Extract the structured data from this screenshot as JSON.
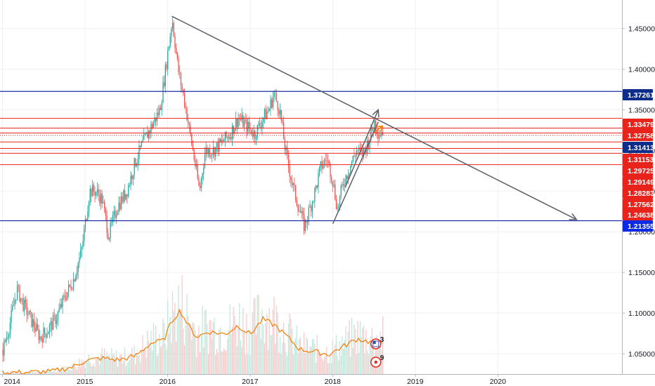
{
  "chart_data": {
    "type": "candlestick",
    "grid": true,
    "x_axis": {
      "ticks": [
        {
          "label": "2014",
          "x": 2014.0
        },
        {
          "label": "2015",
          "x": 2015.0
        },
        {
          "label": "2016",
          "x": 2016.0
        },
        {
          "label": "2017",
          "x": 2017.0
        },
        {
          "label": "2018",
          "x": 2018.0
        },
        {
          "label": "2019",
          "x": 2019.0
        },
        {
          "label": "2020",
          "x": 2020.0
        }
      ],
      "range": [
        2013.97,
        2021.5
      ]
    },
    "y_axis": {
      "ticks": [
        "1.05000",
        "1.10000",
        "1.15000",
        "1.20000",
        "1.25000",
        "1.30000",
        "1.35000",
        "1.40000",
        "1.45000"
      ],
      "range": [
        1.025,
        1.485
      ]
    },
    "price_path": [
      [
        2014.0,
        1.055
      ],
      [
        2014.08,
        1.085
      ],
      [
        2014.17,
        1.13
      ],
      [
        2014.25,
        1.11
      ],
      [
        2014.35,
        1.09
      ],
      [
        2014.45,
        1.07
      ],
      [
        2014.55,
        1.08
      ],
      [
        2014.65,
        1.095
      ],
      [
        2014.75,
        1.12
      ],
      [
        2014.85,
        1.14
      ],
      [
        2014.95,
        1.175
      ],
      [
        2015.05,
        1.25
      ],
      [
        2015.12,
        1.25
      ],
      [
        2015.2,
        1.24
      ],
      [
        2015.28,
        1.195
      ],
      [
        2015.38,
        1.23
      ],
      [
        2015.5,
        1.25
      ],
      [
        2015.6,
        1.285
      ],
      [
        2015.7,
        1.31
      ],
      [
        2015.8,
        1.33
      ],
      [
        2015.9,
        1.35
      ],
      [
        2015.97,
        1.4
      ],
      [
        2016.05,
        1.462
      ],
      [
        2016.12,
        1.4
      ],
      [
        2016.2,
        1.36
      ],
      [
        2016.3,
        1.3
      ],
      [
        2016.38,
        1.25
      ],
      [
        2016.45,
        1.3
      ],
      [
        2016.55,
        1.3
      ],
      [
        2016.65,
        1.31
      ],
      [
        2016.75,
        1.32
      ],
      [
        2016.85,
        1.34
      ],
      [
        2016.95,
        1.33
      ],
      [
        2017.05,
        1.32
      ],
      [
        2017.15,
        1.34
      ],
      [
        2017.22,
        1.35
      ],
      [
        2017.28,
        1.37
      ],
      [
        2017.35,
        1.35
      ],
      [
        2017.42,
        1.3
      ],
      [
        2017.5,
        1.26
      ],
      [
        2017.58,
        1.23
      ],
      [
        2017.65,
        1.206
      ],
      [
        2017.72,
        1.23
      ],
      [
        2017.78,
        1.25
      ],
      [
        2017.85,
        1.28
      ],
      [
        2017.92,
        1.29
      ],
      [
        2017.98,
        1.27
      ],
      [
        2018.05,
        1.228
      ],
      [
        2018.12,
        1.26
      ],
      [
        2018.2,
        1.28
      ],
      [
        2018.28,
        1.3
      ],
      [
        2018.35,
        1.295
      ],
      [
        2018.42,
        1.31
      ],
      [
        2018.5,
        1.335
      ],
      [
        2018.55,
        1.32
      ],
      [
        2018.6,
        1.325
      ]
    ],
    "volume_ma": [
      [
        2014.0,
        0.02
      ],
      [
        2014.3,
        0.02
      ],
      [
        2014.6,
        0.03
      ],
      [
        2014.85,
        0.08
      ],
      [
        2015.0,
        0.15
      ],
      [
        2015.2,
        0.18
      ],
      [
        2015.4,
        0.16
      ],
      [
        2015.6,
        0.2
      ],
      [
        2015.8,
        0.35
      ],
      [
        2015.95,
        0.38
      ],
      [
        2016.05,
        0.6
      ],
      [
        2016.15,
        0.72
      ],
      [
        2016.25,
        0.55
      ],
      [
        2016.35,
        0.42
      ],
      [
        2016.5,
        0.48
      ],
      [
        2016.7,
        0.45
      ],
      [
        2016.85,
        0.55
      ],
      [
        2017.0,
        0.45
      ],
      [
        2017.15,
        0.62
      ],
      [
        2017.3,
        0.55
      ],
      [
        2017.45,
        0.42
      ],
      [
        2017.6,
        0.28
      ],
      [
        2017.8,
        0.25
      ],
      [
        2017.95,
        0.22
      ],
      [
        2018.1,
        0.3
      ],
      [
        2018.3,
        0.4
      ],
      [
        2018.5,
        0.35
      ],
      [
        2018.62,
        0.38
      ]
    ],
    "levels": [
      {
        "label": "1.37261",
        "y": 1.37261,
        "color": "#0d2d8a"
      },
      {
        "label": "1.33479",
        "y": 1.33479,
        "color": "#e8231b"
      },
      {
        "label": "1.32758",
        "y": 1.32758,
        "color": "#e8231b"
      },
      {
        "label": "1.31413",
        "y": 1.31413,
        "color": "#0d2d8a"
      },
      {
        "label": "1.31153",
        "y": 1.31153,
        "color": "#e8231b"
      },
      {
        "label": "1.29725",
        "y": 1.29725,
        "color": "#e8231b"
      },
      {
        "label": "1.29149",
        "y": 1.29149,
        "color": "#e8231b"
      },
      {
        "label": "1.28283",
        "y": 1.28283,
        "color": "#e8231b"
      },
      {
        "label": "1.27562",
        "y": 1.27562,
        "color": "#e8231b"
      },
      {
        "label": "1.24638",
        "y": 1.24638,
        "color": "#e8231b"
      },
      {
        "label": "1.21355",
        "y": 1.21355,
        "color": "#0a2ae6"
      }
    ],
    "red_lines": [
      1.3395,
      1.3275,
      1.3215,
      1.3105,
      1.3025,
      1.2965,
      1.2825
    ],
    "blue_lines": [
      1.37261,
      1.21355
    ],
    "dotted_line": 1.3187,
    "trendlines": [
      {
        "from": [
          2016.05,
          1.465
        ],
        "to": [
          2020.95,
          1.215
        ],
        "arrow": true
      },
      {
        "from": [
          2018.0,
          1.21
        ],
        "to": [
          2018.55,
          1.335
        ],
        "arrow": false
      },
      {
        "from": [
          2018.15,
          1.255
        ],
        "to": [
          2018.55,
          1.35
        ],
        "arrow": true
      }
    ],
    "event_badges": [
      {
        "label": "3",
        "x": 2018.52,
        "flag": "us"
      },
      {
        "label": "9",
        "x": 2018.52,
        "flag": "ca"
      }
    ]
  }
}
